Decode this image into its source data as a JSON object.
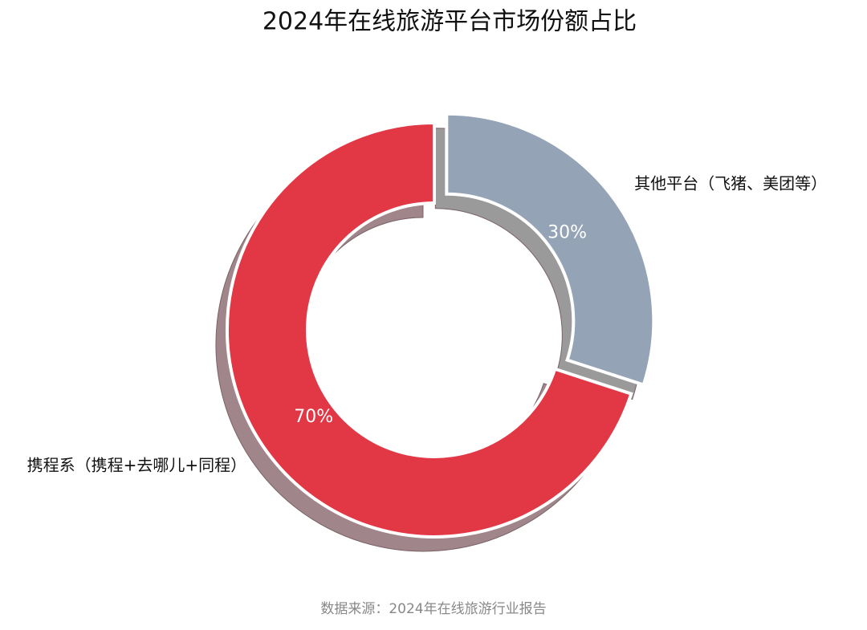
{
  "chart_data": {
    "type": "donut",
    "title": "2024年在线旅游平台市场份额占比",
    "categories": [
      "携程系（携程+去哪儿+同程）",
      "其他平台（飞猪、美团等）"
    ],
    "values": [
      70,
      30
    ],
    "value_labels": [
      "70%",
      "30%"
    ],
    "colors": [
      "#e23744",
      "#94a3b5"
    ],
    "source": "数据来源：2024年在线旅游行业报告"
  }
}
